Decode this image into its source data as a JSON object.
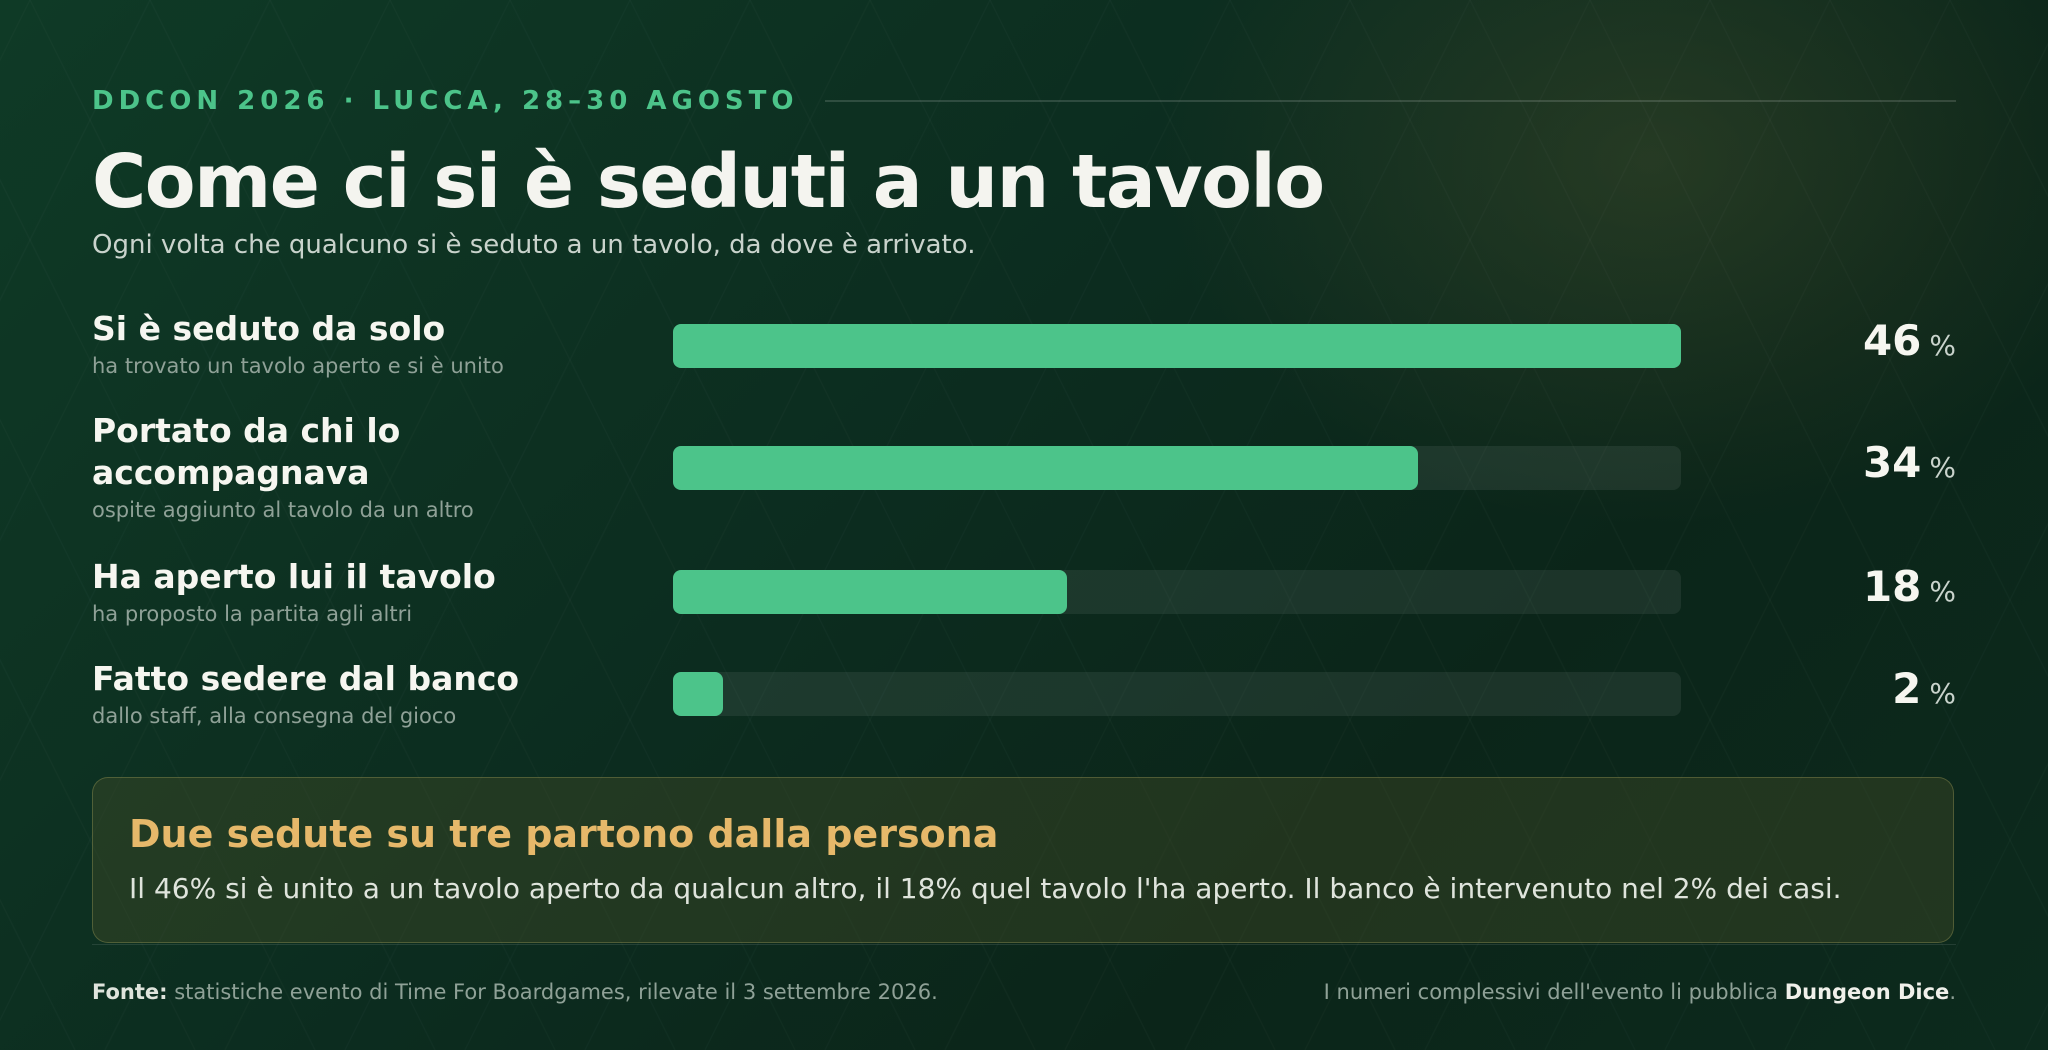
{
  "header": {
    "eyebrow": "DDCON 2026 · LUCCA, 28–30 AGOSTO",
    "title": "Come ci si è seduti a un tavolo",
    "subtitle": "Ogni volta che qualcuno si è seduto a un tavolo, da dove è arrivato."
  },
  "chart_data": {
    "type": "bar",
    "orientation": "horizontal",
    "unit": "%",
    "xlim": [
      0,
      46
    ],
    "grid": false,
    "categories": [
      "Si è seduto da solo",
      "Portato da chi lo accompagnava",
      "Ha aperto lui il tavolo",
      "Fatto sedere dal banco"
    ],
    "subtitles": [
      "ha trovato un tavolo aperto e si è unito",
      "ospite aggiunto al tavolo da un altro",
      "ha proposto la partita agli altri",
      "dallo staff, alla consegna del gioco"
    ],
    "values": [
      46,
      34,
      18,
      2
    ],
    "bar_color": "#4cc48a",
    "track_color": "#2a3a32"
  },
  "callout": {
    "title": "Due sedute su tre partono dalla persona",
    "body": "Il 46% si è unito a un tavolo aperto da qualcun altro, il 18% quel tavolo l'ha aperto. Il banco è intervenuto nel 2% dei casi."
  },
  "footer": {
    "source_label": "Fonte:",
    "source_text": " statistiche evento di Time For Boardgames, rilevate il 3 settembre 2026.",
    "note_text": "I numeri complessivi dell'evento li pubblica ",
    "note_brand": "Dungeon Dice",
    "note_end": "."
  },
  "colors": {
    "accent_green": "#4cc48a",
    "accent_gold": "#e6b86a",
    "background": "#0c2c1f"
  }
}
